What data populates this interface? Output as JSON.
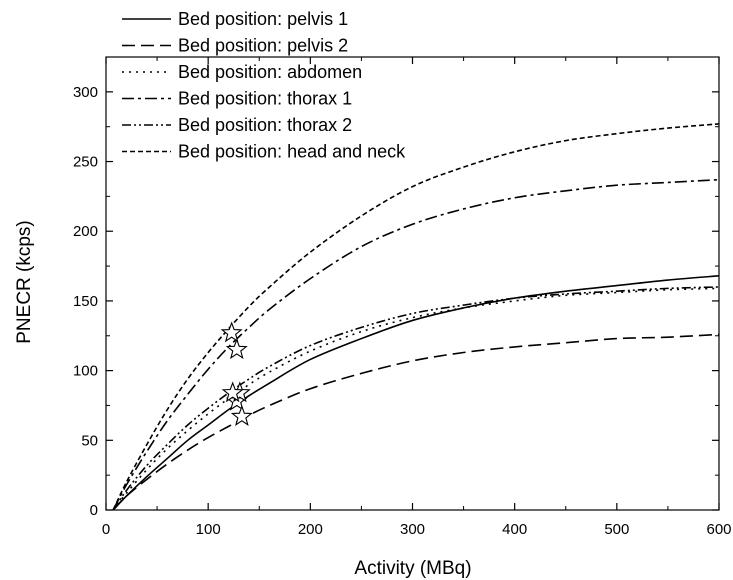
{
  "chart_data": {
    "type": "line",
    "title": "",
    "xlabel": "Activity (MBq)",
    "ylabel": "PNECR (kcps)",
    "xlim": [
      0,
      600
    ],
    "ylim": [
      0,
      325
    ],
    "xticks": [
      0,
      100,
      200,
      300,
      400,
      500,
      600
    ],
    "yticks": [
      0,
      50,
      100,
      150,
      200,
      250,
      300
    ],
    "grid": false,
    "legend_position": "top-left",
    "series": [
      {
        "name": "Bed position: pelvis 1",
        "dash": "solid",
        "x": [
          7,
          20,
          40,
          60,
          80,
          100,
          120,
          140,
          160,
          200,
          250,
          300,
          350,
          400,
          450,
          500,
          550,
          600
        ],
        "y": [
          0,
          10,
          24,
          37,
          50,
          61,
          72,
          82,
          91,
          108,
          123,
          136,
          145,
          152,
          157,
          161,
          165,
          168
        ],
        "marker": {
          "x": 128,
          "y": 78
        }
      },
      {
        "name": "Bed position: pelvis 2",
        "dash": "long-dash",
        "x": [
          7,
          20,
          40,
          60,
          80,
          100,
          120,
          140,
          160,
          200,
          250,
          300,
          350,
          400,
          450,
          500,
          550,
          600
        ],
        "y": [
          0,
          10,
          22,
          33,
          43,
          52,
          60,
          68,
          75,
          87,
          98,
          107,
          113,
          117,
          120,
          123,
          124,
          126
        ],
        "marker": {
          "x": 133,
          "y": 67
        }
      },
      {
        "name": "Bed position: abdomen",
        "dash": "dot",
        "x": [
          7,
          20,
          40,
          60,
          80,
          100,
          120,
          140,
          160,
          200,
          250,
          300,
          350,
          400,
          450,
          500,
          550,
          600
        ],
        "y": [
          0,
          12,
          29,
          44,
          57,
          69,
          80,
          90,
          99,
          114,
          128,
          138,
          145,
          150,
          154,
          156,
          158,
          159
        ],
        "marker": {
          "x": 131,
          "y": 84
        }
      },
      {
        "name": "Bed position: thorax 1",
        "dash": "dash-dot",
        "x": [
          7,
          20,
          40,
          60,
          80,
          100,
          120,
          140,
          160,
          200,
          250,
          300,
          350,
          400,
          450,
          500,
          550,
          600
        ],
        "y": [
          0,
          18,
          42,
          64,
          83,
          101,
          117,
          131,
          144,
          166,
          189,
          205,
          216,
          224,
          229,
          233,
          235,
          237
        ],
        "marker": {
          "x": 128,
          "y": 115
        }
      },
      {
        "name": "Bed position: thorax 2",
        "dash": "dash-dot-dot",
        "x": [
          7,
          20,
          40,
          60,
          80,
          100,
          120,
          140,
          160,
          200,
          250,
          300,
          350,
          400,
          450,
          500,
          550,
          600
        ],
        "y": [
          0,
          14,
          32,
          47,
          61,
          73,
          84,
          94,
          103,
          118,
          131,
          141,
          147,
          152,
          155,
          157,
          159,
          160
        ],
        "marker": {
          "x": 124,
          "y": 84
        }
      },
      {
        "name": "Bed position: head and neck",
        "dash": "short-dash",
        "x": [
          7,
          20,
          40,
          60,
          80,
          100,
          120,
          140,
          160,
          200,
          250,
          300,
          350,
          400,
          450,
          500,
          550,
          600
        ],
        "y": [
          0,
          20,
          47,
          72,
          94,
          113,
          130,
          146,
          160,
          185,
          211,
          232,
          246,
          257,
          265,
          270,
          274,
          277
        ],
        "marker": {
          "x": 123,
          "y": 127
        }
      }
    ]
  }
}
